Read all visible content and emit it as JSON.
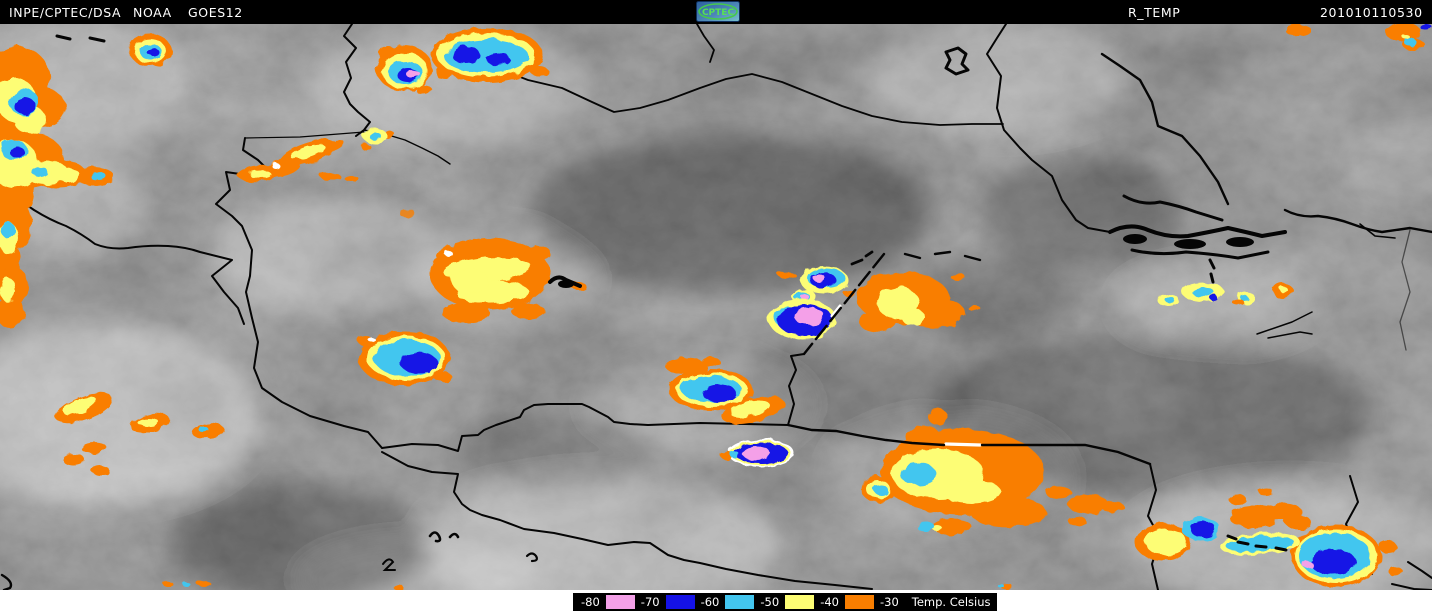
{
  "header": {
    "agency": "INPE/CPTEC/DSA",
    "operator": "NOAA",
    "satellite": "GOES12",
    "logo_text": "CPTEC",
    "product": "R_TEMP",
    "timestamp": "201010110530"
  },
  "legend": {
    "title": "Temp. Celsius",
    "tick_labels": [
      "-80",
      "-70",
      "-60",
      "-50",
      "-40",
      "-30"
    ],
    "band_colors": [
      "#F4A0E8",
      "#1512E6",
      "#43C6EF",
      "#FDFD74",
      "#F97E00"
    ],
    "background": "#000000",
    "text_color": "#FFFFFF"
  },
  "map_colors": {
    "coldest_pink": "#F4A0E8",
    "very_cold_blue": "#1512E6",
    "cold_cyan": "#43C6EF",
    "cool_yellow": "#FDFD74",
    "warm_orange": "#F97E00",
    "border_black": "#050505",
    "cloud_gray_base": "#5c5c5c"
  }
}
